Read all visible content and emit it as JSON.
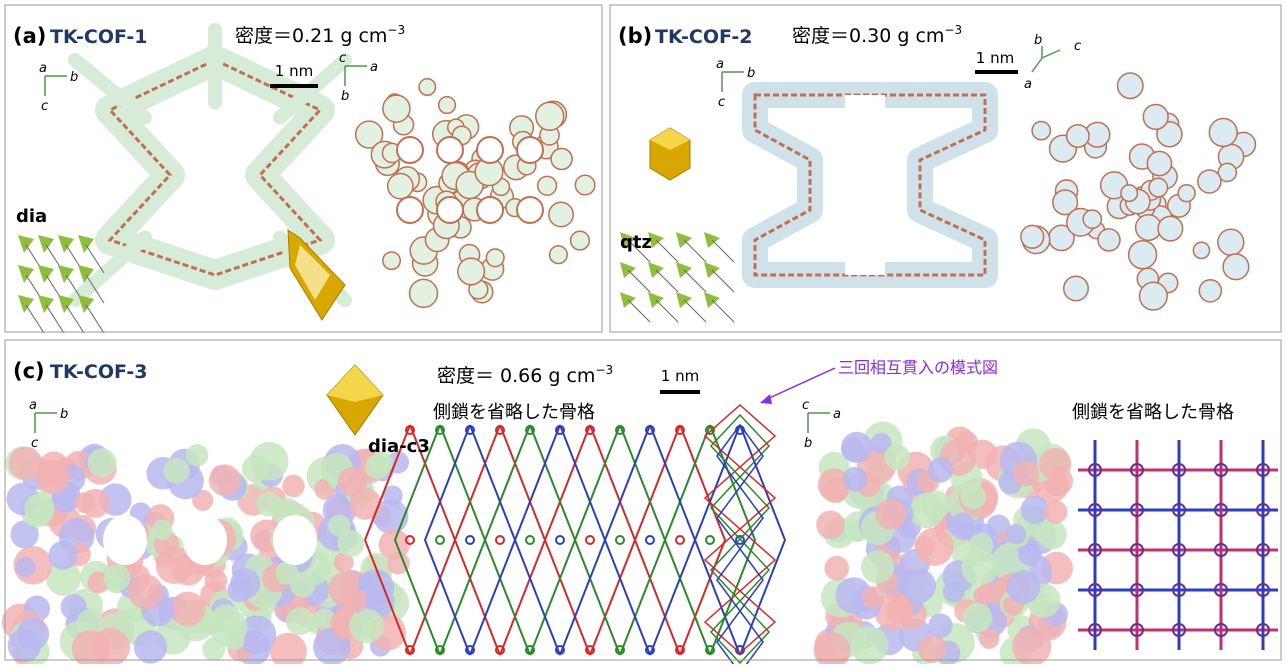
{
  "panels": [
    {
      "label": "(a)",
      "name": "TK-COF-1",
      "density": {
        "text": "密度＝0.21 g cm",
        "exponent": "−3"
      },
      "scale_bar": "1 nm",
      "axes": [
        [
          "a",
          "b",
          "c"
        ],
        [
          "c",
          "a",
          "b"
        ]
      ],
      "topology": "dia"
    },
    {
      "label": "(b)",
      "name": "TK-COF-2",
      "density": {
        "text": "密度＝0.30 g cm",
        "exponent": "−3"
      },
      "scale_bar": "1 nm",
      "axes": [
        [
          "a",
          "b",
          "c"
        ],
        [
          "b",
          "c",
          "a"
        ]
      ],
      "topology": "qtz"
    },
    {
      "label": "(c)",
      "name": "TK-COF-3",
      "density": {
        "text": "密度＝ 0.66 g cm",
        "exponent": "−3"
      },
      "scale_bar": "1 nm",
      "axes": [
        [
          "a",
          "b",
          "c"
        ],
        [
          "c",
          "a",
          "b"
        ]
      ],
      "topology": "dia-c3",
      "captions": [
        "側鎖を省略した骨格",
        "側鎖を省略した骨格"
      ],
      "annotation": "三回相互貫入の模式図"
    }
  ]
}
